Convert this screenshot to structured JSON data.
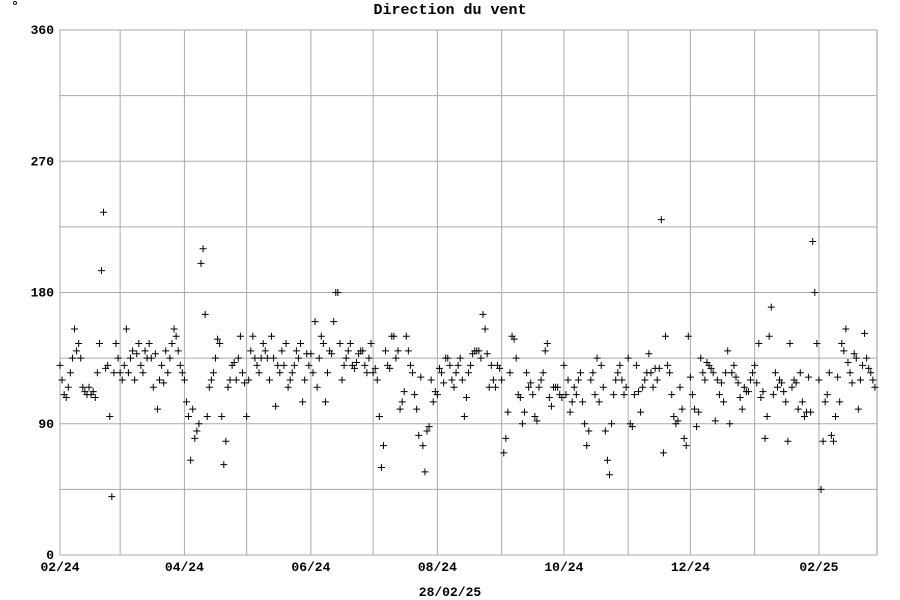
{
  "chart_data": {
    "type": "scatter",
    "title": "Direction du vent",
    "y_unit": "°",
    "footer": "28/02/25",
    "color": "#000000",
    "grid": true,
    "xlim": [
      0,
      394
    ],
    "ylim": [
      0,
      360
    ],
    "xticks": [
      {
        "value": 0,
        "label": "02/24"
      },
      {
        "value": 60,
        "label": "04/24"
      },
      {
        "value": 121,
        "label": "06/24"
      },
      {
        "value": 182,
        "label": "08/24"
      },
      {
        "value": 243,
        "label": "10/24"
      },
      {
        "value": 304,
        "label": "12/24"
      },
      {
        "value": 366,
        "label": "02/25"
      }
    ],
    "xminor": [
      29,
      90,
      151,
      213,
      274,
      335
    ],
    "yticks": [
      0,
      90,
      180,
      270,
      360
    ],
    "yminor": [
      45,
      135,
      225,
      315
    ],
    "x": [
      0,
      1,
      2,
      3,
      4,
      5,
      6,
      7,
      8,
      9,
      10,
      11,
      12,
      13,
      14,
      15,
      16,
      17,
      18,
      19,
      20,
      21,
      22,
      23,
      24,
      25,
      26,
      27,
      28,
      29,
      30,
      31,
      32,
      33,
      34,
      35,
      36,
      37,
      38,
      39,
      40,
      41,
      42,
      43,
      44,
      45,
      46,
      47,
      48,
      49,
      50,
      51,
      52,
      53,
      54,
      55,
      56,
      57,
      58,
      59,
      60,
      61,
      62,
      63,
      64,
      65,
      66,
      67,
      68,
      69,
      70,
      71,
      72,
      73,
      74,
      75,
      76,
      77,
      78,
      79,
      80,
      81,
      82,
      83,
      84,
      85,
      86,
      87,
      88,
      89,
      90,
      91,
      92,
      93,
      94,
      95,
      96,
      97,
      98,
      99,
      100,
      101,
      102,
      103,
      104,
      105,
      106,
      107,
      108,
      109,
      110,
      111,
      112,
      113,
      114,
      115,
      116,
      117,
      118,
      119,
      120,
      121,
      122,
      123,
      124,
      125,
      126,
      127,
      128,
      129,
      130,
      131,
      132,
      133,
      134,
      135,
      136,
      137,
      138,
      139,
      140,
      141,
      142,
      143,
      144,
      145,
      146,
      147,
      148,
      149,
      150,
      151,
      152,
      153,
      154,
      155,
      156,
      157,
      158,
      159,
      160,
      161,
      162,
      163,
      164,
      165,
      166,
      167,
      168,
      169,
      170,
      171,
      172,
      173,
      174,
      175,
      176,
      177,
      178,
      179,
      180,
      181,
      182,
      183,
      184,
      185,
      186,
      187,
      188,
      189,
      190,
      191,
      192,
      193,
      194,
      195,
      196,
      197,
      198,
      199,
      200,
      201,
      202,
      203,
      204,
      205,
      206,
      207,
      208,
      209,
      210,
      211,
      212,
      213,
      214,
      215,
      216,
      217,
      218,
      219,
      220,
      221,
      222,
      223,
      224,
      225,
      226,
      227,
      228,
      229,
      230,
      231,
      232,
      233,
      234,
      235,
      236,
      237,
      238,
      239,
      240,
      241,
      242,
      243,
      244,
      245,
      246,
      247,
      248,
      249,
      250,
      251,
      252,
      253,
      254,
      255,
      256,
      257,
      258,
      259,
      260,
      261,
      262,
      263,
      264,
      265,
      266,
      267,
      268,
      269,
      270,
      271,
      272,
      273,
      274,
      275,
      276,
      277,
      278,
      279,
      280,
      281,
      282,
      283,
      284,
      285,
      286,
      287,
      288,
      289,
      290,
      291,
      292,
      293,
      294,
      295,
      296,
      297,
      298,
      299,
      300,
      301,
      302,
      303,
      304,
      305,
      306,
      307,
      308,
      309,
      310,
      311,
      312,
      313,
      314,
      315,
      316,
      317,
      318,
      319,
      320,
      321,
      322,
      323,
      324,
      325,
      326,
      327,
      328,
      329,
      330,
      331,
      332,
      333,
      334,
      335,
      336,
      337,
      338,
      339,
      340,
      341,
      342,
      343,
      344,
      345,
      346,
      347,
      348,
      349,
      350,
      351,
      352,
      353,
      354,
      355,
      356,
      357,
      358,
      359,
      360,
      361,
      362,
      363,
      364,
      365,
      366,
      367,
      368,
      369,
      370,
      371,
      372,
      373,
      374,
      375,
      376,
      377,
      378,
      379,
      380,
      381,
      382,
      383,
      384,
      385,
      386,
      387,
      388,
      389,
      390,
      391,
      392,
      393
    ],
    "values": [
      130,
      120,
      110,
      108,
      115,
      125,
      135,
      155,
      140,
      145,
      135,
      115,
      112,
      110,
      115,
      110,
      112,
      108,
      125,
      145,
      195,
      235,
      128,
      130,
      95,
      40,
      125,
      145,
      135,
      125,
      120,
      130,
      155,
      125,
      135,
      140,
      120,
      138,
      145,
      130,
      125,
      140,
      135,
      145,
      135,
      115,
      138,
      100,
      120,
      130,
      118,
      140,
      125,
      135,
      145,
      155,
      150,
      140,
      130,
      125,
      120,
      105,
      95,
      65,
      100,
      80,
      85,
      90,
      200,
      210,
      165,
      95,
      115,
      120,
      125,
      135,
      148,
      145,
      95,
      62,
      78,
      115,
      120,
      130,
      132,
      120,
      135,
      150,
      125,
      118,
      95,
      120,
      140,
      150,
      135,
      130,
      125,
      135,
      145,
      140,
      135,
      120,
      150,
      135,
      102,
      130,
      125,
      140,
      130,
      145,
      115,
      120,
      125,
      130,
      140,
      135,
      145,
      105,
      120,
      138,
      130,
      138,
      125,
      160,
      115,
      135,
      150,
      145,
      105,
      125,
      140,
      138,
      160,
      180,
      180,
      145,
      120,
      130,
      135,
      140,
      145,
      130,
      128,
      132,
      138,
      140,
      140,
      130,
      125,
      135,
      145,
      125,
      128,
      120,
      95,
      60,
      75,
      140,
      130,
      128,
      150,
      150,
      135,
      140,
      100,
      105,
      112,
      150,
      140,
      130,
      125,
      110,
      100,
      82,
      122,
      75,
      57,
      85,
      88,
      120,
      105,
      112,
      110,
      128,
      125,
      118,
      135,
      135,
      130,
      120,
      115,
      125,
      130,
      135,
      120,
      95,
      108,
      125,
      130,
      138,
      140,
      140,
      140,
      135,
      165,
      155,
      138,
      115,
      130,
      120,
      115,
      130,
      128,
      120,
      70,
      80,
      98,
      125,
      150,
      148,
      135,
      110,
      108,
      90,
      98,
      125,
      115,
      118,
      110,
      95,
      92,
      115,
      120,
      125,
      140,
      145,
      108,
      102,
      115,
      115,
      115,
      110,
      108,
      130,
      110,
      120,
      98,
      105,
      115,
      110,
      120,
      125,
      105,
      90,
      75,
      85,
      120,
      125,
      110,
      135,
      105,
      130,
      115,
      85,
      65,
      55,
      90,
      110,
      120,
      125,
      130,
      120,
      110,
      115,
      135,
      90,
      88,
      110,
      130,
      112,
      98,
      115,
      120,
      125,
      138,
      125,
      115,
      128,
      120,
      128,
      230,
      70,
      150,
      130,
      125,
      110,
      95,
      90,
      92,
      115,
      100,
      80,
      75,
      150,
      122,
      110,
      100,
      88,
      98,
      135,
      125,
      120,
      132,
      130,
      128,
      125,
      92,
      120,
      110,
      118,
      105,
      125,
      140,
      90,
      125,
      130,
      122,
      118,
      108,
      100,
      115,
      112,
      112,
      120,
      125,
      130,
      118,
      145,
      108,
      112,
      80,
      95,
      150,
      170,
      110,
      125,
      115,
      120,
      118,
      112,
      105,
      78,
      145,
      115,
      120,
      118,
      100,
      125,
      105,
      95,
      98,
      122,
      98,
      215,
      180,
      145,
      120,
      45,
      78,
      105,
      110,
      125,
      82,
      78,
      95,
      122,
      105,
      145,
      140,
      155,
      132,
      125,
      118,
      138,
      135,
      100,
      120,
      130,
      152,
      135,
      128,
      125,
      120,
      115
    ]
  }
}
